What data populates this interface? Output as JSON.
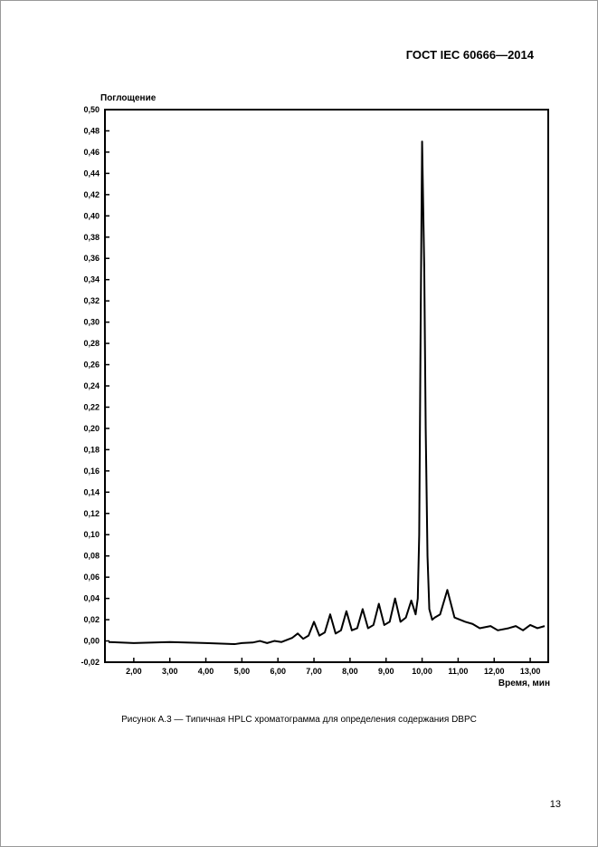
{
  "header": {
    "standard": "ГОСТ IEC 60666—2014"
  },
  "chart": {
    "type": "line",
    "ylabel": "Поглощение",
    "xlabel": "Время, мин",
    "ylabel_fontsize": 10,
    "xlabel_fontsize": 10,
    "tick_fontsize": 9,
    "line_color": "#000000",
    "line_width": 2.0,
    "background_color": "#ffffff",
    "frame_color": "#000000",
    "frame_width": 2.0,
    "xlim": [
      1.2,
      13.5
    ],
    "ylim": [
      -0.02,
      0.5
    ],
    "xticks": [
      2.0,
      3.0,
      4.0,
      5.0,
      6.0,
      7.0,
      8.0,
      9.0,
      10.0,
      11.0,
      12.0,
      13.0
    ],
    "xtick_labels": [
      "2,00",
      "3,00",
      "4,00",
      "5,00",
      "6,00",
      "7,00",
      "8,00",
      "9,00",
      "10,00",
      "11,00",
      "12,00",
      "13,00"
    ],
    "yticks": [
      -0.02,
      0.0,
      0.02,
      0.04,
      0.06,
      0.08,
      0.1,
      0.12,
      0.14,
      0.16,
      0.18,
      0.2,
      0.22,
      0.24,
      0.26,
      0.28,
      0.3,
      0.32,
      0.34,
      0.36,
      0.38,
      0.4,
      0.42,
      0.44,
      0.46,
      0.48,
      0.5
    ],
    "ytick_labels": [
      "-0,02",
      "0,00",
      "0,02",
      "0,04",
      "0,06",
      "0,08",
      "0,10",
      "0,12",
      "0,14",
      "0,16",
      "0,18",
      "0,20",
      "0,22",
      "0,24",
      "0,26",
      "0,28",
      "0,30",
      "0,32",
      "0,34",
      "0,36",
      "0,38",
      "0,40",
      "0,42",
      "0,44",
      "0,46",
      "0,48",
      "0,50"
    ],
    "tick_len": 5,
    "data": [
      [
        1.3,
        -0.001
      ],
      [
        2.0,
        -0.002
      ],
      [
        3.0,
        -0.001
      ],
      [
        4.0,
        -0.002
      ],
      [
        4.8,
        -0.003
      ],
      [
        5.0,
        -0.002
      ],
      [
        5.3,
        -0.0015
      ],
      [
        5.5,
        0.0
      ],
      [
        5.7,
        -0.002
      ],
      [
        5.9,
        0.0
      ],
      [
        6.1,
        -0.001
      ],
      [
        6.4,
        0.003
      ],
      [
        6.55,
        0.007
      ],
      [
        6.7,
        0.002
      ],
      [
        6.85,
        0.005
      ],
      [
        7.0,
        0.018
      ],
      [
        7.15,
        0.005
      ],
      [
        7.3,
        0.008
      ],
      [
        7.45,
        0.025
      ],
      [
        7.6,
        0.007
      ],
      [
        7.75,
        0.01
      ],
      [
        7.9,
        0.028
      ],
      [
        8.05,
        0.01
      ],
      [
        8.2,
        0.012
      ],
      [
        8.35,
        0.03
      ],
      [
        8.5,
        0.012
      ],
      [
        8.65,
        0.015
      ],
      [
        8.8,
        0.035
      ],
      [
        8.95,
        0.015
      ],
      [
        9.1,
        0.018
      ],
      [
        9.25,
        0.04
      ],
      [
        9.4,
        0.018
      ],
      [
        9.55,
        0.022
      ],
      [
        9.7,
        0.038
      ],
      [
        9.82,
        0.025
      ],
      [
        9.88,
        0.04
      ],
      [
        9.92,
        0.1
      ],
      [
        9.96,
        0.3
      ],
      [
        10.0,
        0.47
      ],
      [
        10.06,
        0.35
      ],
      [
        10.1,
        0.2
      ],
      [
        10.15,
        0.08
      ],
      [
        10.2,
        0.03
      ],
      [
        10.28,
        0.02
      ],
      [
        10.35,
        0.022
      ],
      [
        10.5,
        0.025
      ],
      [
        10.7,
        0.048
      ],
      [
        10.9,
        0.022
      ],
      [
        11.05,
        0.02
      ],
      [
        11.2,
        0.018
      ],
      [
        11.4,
        0.016
      ],
      [
        11.6,
        0.012
      ],
      [
        11.9,
        0.014
      ],
      [
        12.1,
        0.01
      ],
      [
        12.4,
        0.012
      ],
      [
        12.6,
        0.014
      ],
      [
        12.8,
        0.01
      ],
      [
        13.0,
        0.015
      ],
      [
        13.2,
        0.012
      ],
      [
        13.4,
        0.014
      ]
    ]
  },
  "caption": {
    "text": "Рисунок  А.3 — Типичная HPLC хроматограмма для определения содержания DBPC"
  },
  "footer": {
    "pagenum": "13"
  }
}
